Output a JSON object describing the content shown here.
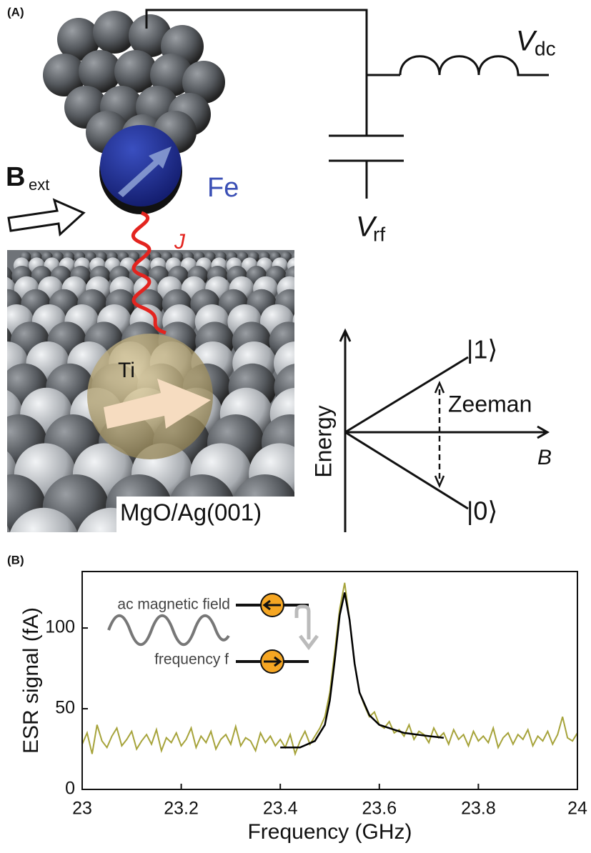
{
  "panel_a": {
    "label": "(A)",
    "v_dc": "V",
    "v_dc_sub": "dc",
    "v_rf": "V",
    "v_rf_sub": "rf",
    "b_ext": "B",
    "b_ext_sub": "ext",
    "fe": "Fe",
    "j": "J",
    "ti": "Ti",
    "substrate": "MgO/Ag(001)",
    "energy_axis": "Energy",
    "state_1": "|1⟩",
    "state_0": "|0⟩",
    "zeeman": "Zeeman",
    "b_axis": "B"
  },
  "panel_b_label": "(B)",
  "chart_data": {
    "type": "line",
    "xlabel": "Frequency (GHz)",
    "ylabel": "ESR signal (fA)",
    "annotations": [
      "ac magnetic field",
      "frequency f"
    ],
    "xlim": [
      23,
      24
    ],
    "xticks": [
      23,
      23.2,
      23.4,
      23.6,
      23.8,
      24
    ],
    "ylim": [
      0,
      135
    ],
    "yticks": [
      0,
      50,
      100
    ],
    "series": [
      {
        "color": "#a6a33a",
        "x": [
          23.0,
          23.01,
          23.02,
          23.03,
          23.04,
          23.05,
          23.06,
          23.07,
          23.08,
          23.09,
          23.1,
          23.11,
          23.12,
          23.13,
          23.14,
          23.15,
          23.16,
          23.17,
          23.18,
          23.19,
          23.2,
          23.21,
          23.22,
          23.23,
          23.24,
          23.25,
          23.26,
          23.27,
          23.28,
          23.29,
          23.3,
          23.31,
          23.32,
          23.33,
          23.34,
          23.35,
          23.36,
          23.37,
          23.38,
          23.39,
          23.4,
          23.41,
          23.42,
          23.43,
          23.44,
          23.45,
          23.46,
          23.47,
          23.48,
          23.49,
          23.5,
          23.51,
          23.52,
          23.53,
          23.54,
          23.55,
          23.56,
          23.57,
          23.58,
          23.59,
          23.6,
          23.61,
          23.62,
          23.63,
          23.64,
          23.65,
          23.66,
          23.67,
          23.68,
          23.69,
          23.7,
          23.71,
          23.72,
          23.73,
          23.74,
          23.75,
          23.76,
          23.77,
          23.78,
          23.79,
          23.8,
          23.81,
          23.82,
          23.83,
          23.84,
          23.85,
          23.86,
          23.87,
          23.88,
          23.89,
          23.9,
          23.91,
          23.92,
          23.93,
          23.94,
          23.95,
          23.96,
          23.97,
          23.98,
          23.99,
          24.0
        ],
        "values": [
          28,
          35,
          22,
          40,
          30,
          26,
          33,
          38,
          27,
          31,
          36,
          25,
          30,
          34,
          28,
          37,
          24,
          32,
          29,
          35,
          27,
          31,
          38,
          26,
          33,
          29,
          36,
          25,
          31,
          34,
          28,
          39,
          27,
          32,
          30,
          24,
          35,
          29,
          33,
          27,
          31,
          26,
          34,
          22,
          30,
          36,
          28,
          33,
          38,
          45,
          60,
          85,
          112,
          128,
          105,
          78,
          60,
          52,
          45,
          48,
          40,
          38,
          42,
          35,
          37,
          33,
          40,
          31,
          36,
          34,
          29,
          38,
          32,
          35,
          28,
          37,
          31,
          34,
          27,
          36,
          30,
          33,
          29,
          38,
          26,
          32,
          35,
          28,
          34,
          31,
          37,
          27,
          33,
          30,
          36,
          28,
          34,
          45,
          32,
          30,
          35
        ]
      },
      {
        "color": "#000000",
        "x": [
          23.4,
          23.44,
          23.47,
          23.49,
          23.5,
          23.51,
          23.52,
          23.53,
          23.54,
          23.55,
          23.56,
          23.58,
          23.6,
          23.65,
          23.7,
          23.73
        ],
        "values": [
          26,
          26,
          30,
          40,
          55,
          80,
          108,
          122,
          105,
          78,
          60,
          46,
          40,
          35,
          33,
          32
        ]
      }
    ]
  }
}
